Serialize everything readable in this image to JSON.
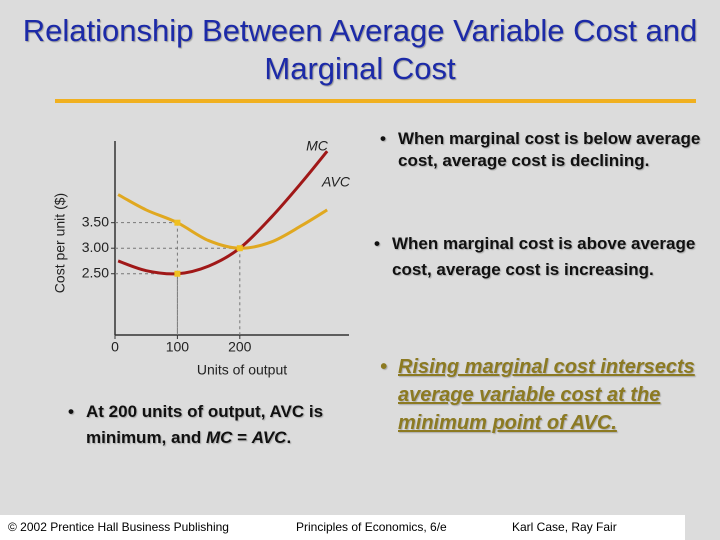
{
  "title": "Relationship Between Average Variable Cost and Marginal Cost",
  "chart_data": {
    "type": "line",
    "ylabel": "Cost per unit ($)",
    "xlabel": "Units of output",
    "x": [
      5,
      50,
      100,
      150,
      200,
      250,
      300,
      340
    ],
    "series": [
      {
        "name": "MC",
        "color": "#a01818",
        "values": [
          2.75,
          2.56,
          2.5,
          2.65,
          3.0,
          3.6,
          4.3,
          4.9
        ]
      },
      {
        "name": "AVC",
        "color": "#e0a820",
        "values": [
          4.05,
          3.75,
          3.5,
          3.15,
          3.0,
          3.12,
          3.45,
          3.75
        ]
      }
    ],
    "markers": {
      "x": [
        100,
        100,
        200
      ],
      "y": [
        3.5,
        2.5,
        3.0
      ],
      "color": "#f0c020"
    },
    "xlim": [
      0,
      375
    ],
    "ylim": [
      1.3,
      5.1
    ],
    "xticks": [
      0,
      100,
      200
    ],
    "yticks": [
      {
        "value": 2.5,
        "label": "2.50"
      },
      {
        "value": 3,
        "label": "3.00"
      },
      {
        "value": 3.5,
        "label": "3.50"
      }
    ]
  },
  "bullets": [
    "When marginal cost is below average cost, average cost is declining.",
    "When marginal cost is above average cost, average cost is increasing.",
    "Rising marginal cost intersects average variable cost at the minimum point of AVC.",
    [
      "At 200 units of output, AVC is minimum, and ",
      "MC",
      " = ",
      "AVC",
      "."
    ]
  ],
  "footer": [
    "© 2002 Prentice Hall Business Publishing",
    "Principles of Economics, 6/e",
    "Karl Case, Ray Fair"
  ]
}
